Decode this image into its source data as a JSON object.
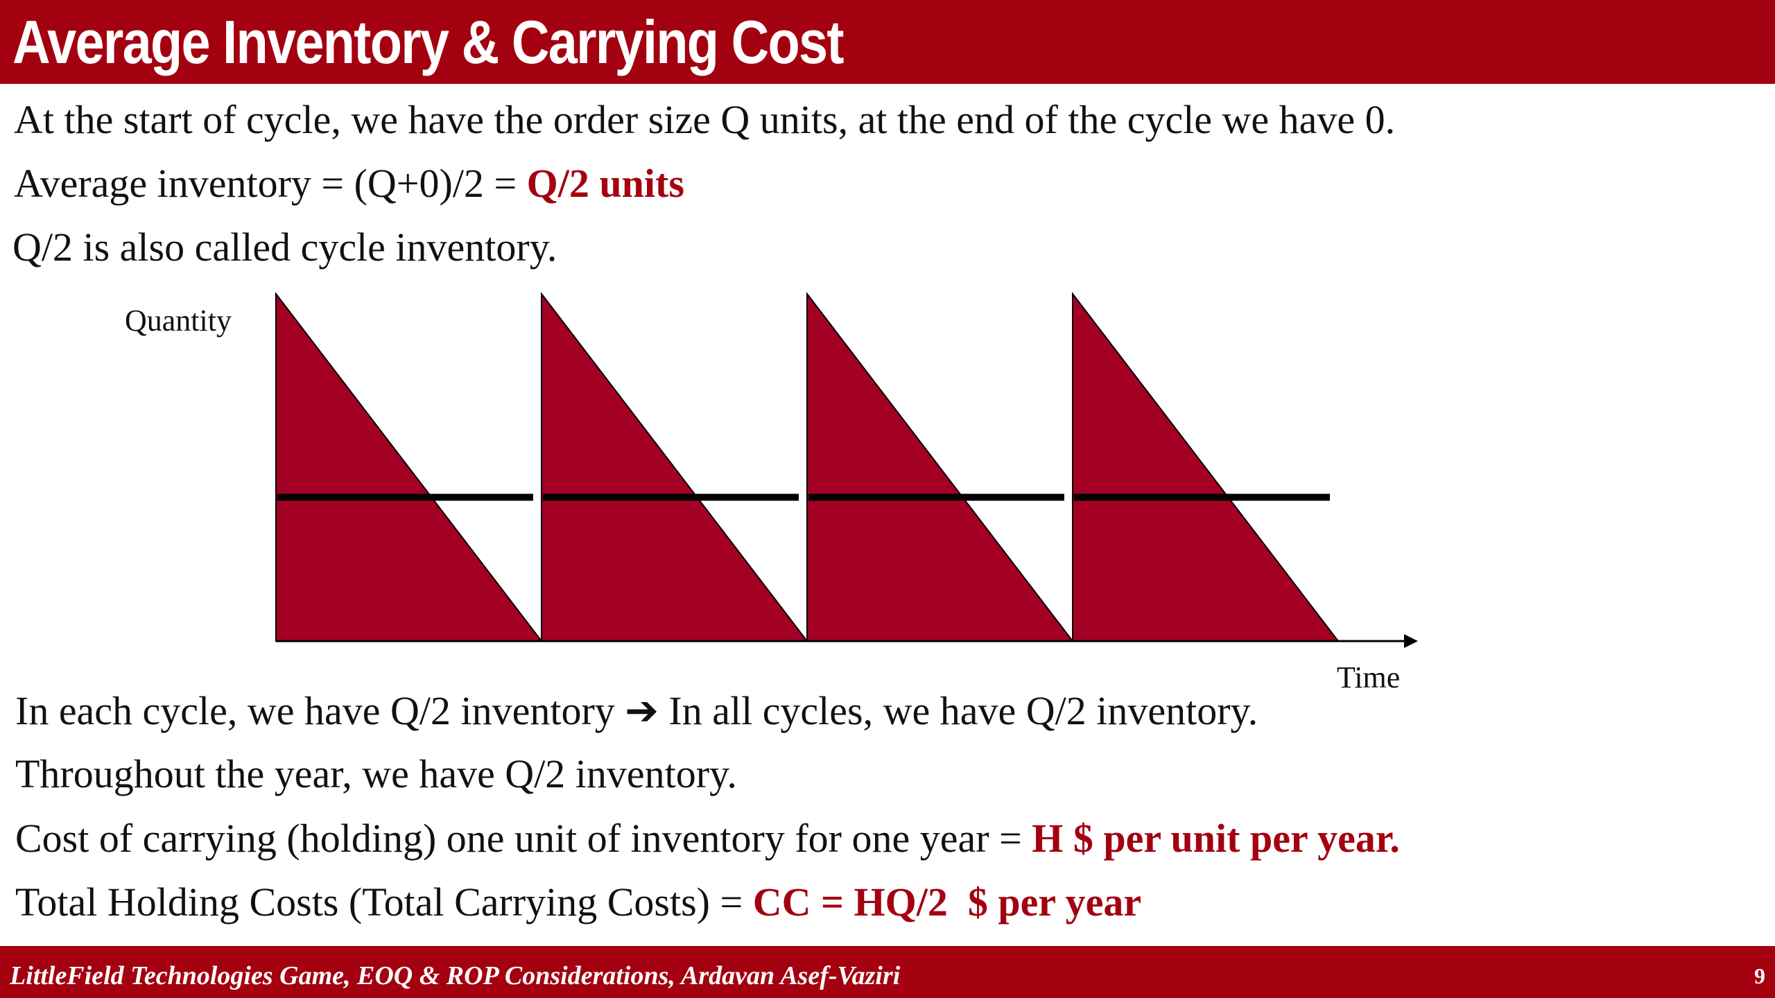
{
  "slide": {
    "title": "Average Inventory & Carrying Cost",
    "intro": {
      "line1": "At the start of cycle, we have the order size Q units, at the end of the cycle we have 0.",
      "line2_text": "Average inventory = (Q+0)/2 = ",
      "line2_highlight": "Q/2 units",
      "line3": "Q/2 is also called cycle inventory."
    },
    "diagram": {
      "y_axis_label": "Quantity",
      "x_axis_label": "Time",
      "cycles": 4,
      "fill_color": "#a30024",
      "line_color": "#000000"
    },
    "body": {
      "line4_a": "In each cycle, we have Q/2 inventory ",
      "line4_arrow": "➔",
      "line4_b": " In all cycles, we have Q/2 inventory.",
      "line5": "Throughout the year, we have Q/2 inventory.",
      "line6_text": "Cost of carrying (holding) one unit of inventory for one year = ",
      "line6_highlight": "H $ per unit per year.",
      "line7_text": "Total Holding Costs (Total Carrying Costs) = ",
      "line7_highlight": "CC = HQ/2  $ per year"
    },
    "footer": {
      "text": "LittleField Technologies Game, EOQ & ROP Considerations, Ardavan Asef-Vaziri",
      "page_number": "9"
    },
    "colors": {
      "accent": "#a30010",
      "highlight_text": "#a30010"
    }
  }
}
